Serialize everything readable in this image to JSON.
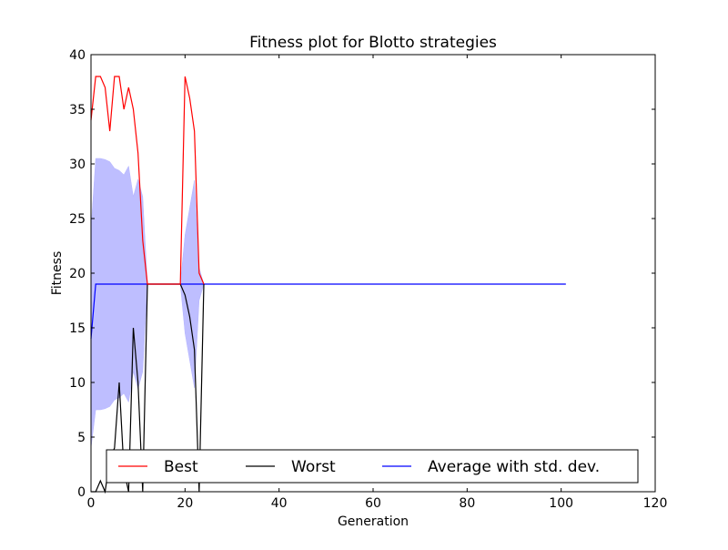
{
  "chart_data": {
    "type": "line",
    "title": "Fitness plot for Blotto strategies",
    "xlabel": "Generation",
    "ylabel": "Fitness",
    "xlim": [
      0,
      120
    ],
    "ylim": [
      0,
      40
    ],
    "xticks": [
      0,
      20,
      40,
      60,
      80,
      100,
      120
    ],
    "yticks": [
      0,
      5,
      10,
      15,
      20,
      25,
      30,
      35,
      40
    ],
    "grid": false,
    "legend": {
      "placement": "lower-center",
      "ncol": 3
    },
    "series": [
      {
        "name": "Best",
        "color": "#ff0000",
        "x": [
          0,
          1,
          2,
          3,
          4,
          5,
          6,
          7,
          8,
          9,
          10,
          11,
          12,
          19,
          20,
          21,
          22,
          23,
          24
        ],
        "y": [
          34,
          38,
          38,
          37,
          33,
          38,
          38,
          35,
          37,
          35,
          31,
          23,
          19,
          19,
          38,
          36,
          33,
          20,
          19
        ]
      },
      {
        "name": "Worst",
        "color": "#000000",
        "x": [
          0,
          1,
          2,
          3,
          4,
          5,
          6,
          7,
          8,
          9,
          10,
          11,
          12,
          19,
          20,
          21,
          22,
          23,
          24
        ],
        "y": [
          0,
          0,
          1,
          0,
          3,
          4,
          10,
          2,
          0,
          15,
          10,
          0,
          19,
          19,
          18,
          16,
          13,
          0,
          19
        ]
      },
      {
        "name": "Average with std. dev.",
        "color": "#0000ff",
        "x": [
          0,
          1,
          2,
          3,
          4,
          5,
          6,
          7,
          8,
          9,
          10,
          11,
          12,
          19,
          20,
          21,
          22,
          23,
          24,
          101
        ],
        "y": [
          14,
          19,
          19,
          19,
          19,
          19,
          19,
          19,
          19,
          19,
          19,
          19,
          19,
          19,
          19,
          19,
          19,
          19,
          19,
          19
        ]
      }
    ],
    "std_band": {
      "color": "#b3b3ff",
      "segments": [
        {
          "x": [
            0,
            1,
            2,
            3,
            4,
            5,
            6,
            7,
            8,
            9,
            10,
            11,
            12
          ],
          "upper": [
            24,
            30.5,
            30.5,
            30.4,
            30.2,
            29.6,
            29.4,
            29,
            29.8,
            27,
            28.6,
            27,
            19
          ],
          "lower": [
            4,
            7.5,
            7.5,
            7.6,
            7.8,
            8.4,
            8.6,
            9,
            8.2,
            11,
            9.4,
            11,
            19
          ]
        },
        {
          "x": [
            19,
            20,
            21,
            22,
            23,
            24
          ],
          "upper": [
            19,
            23.5,
            26,
            28.5,
            20.5,
            19
          ],
          "lower": [
            19,
            14.5,
            12,
            9.5,
            17.5,
            19
          ]
        }
      ]
    }
  }
}
